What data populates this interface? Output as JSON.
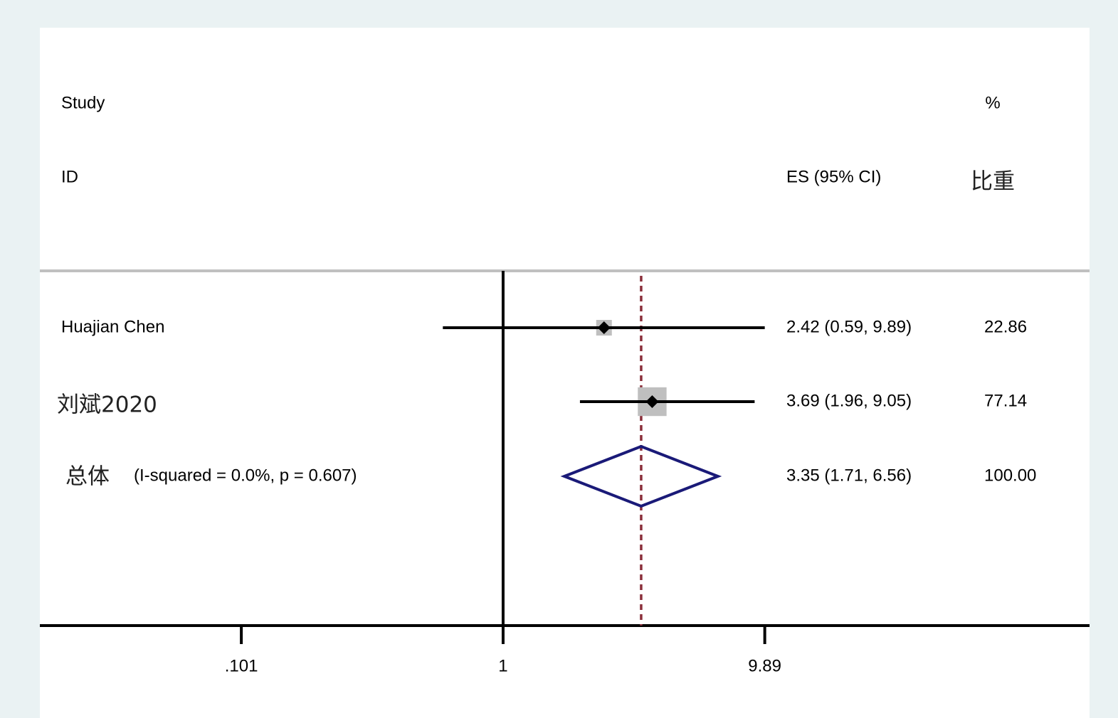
{
  "chart_data": {
    "type": "forest",
    "headers": {
      "study": "Study",
      "id": "ID",
      "es": "ES (95% CI)",
      "pct": "%",
      "weight": "比重"
    },
    "studies": [
      {
        "name": "Huajian Chen",
        "es": 2.42,
        "lower": 0.59,
        "upper": 9.89,
        "es_label": "2.42 (0.59, 9.89)",
        "weight": 22.86,
        "weight_label": "22.86"
      },
      {
        "name": "刘斌2020",
        "es": 3.69,
        "lower": 1.96,
        "upper": 9.05,
        "es_label": "3.69 (1.96, 9.05)",
        "weight": 77.14,
        "weight_label": "77.14"
      }
    ],
    "overall": {
      "name": "总体",
      "note": "(I-squared = 0.0%, p = 0.607)",
      "es": 3.35,
      "lower": 1.71,
      "upper": 6.56,
      "es_label": "3.35 (1.71, 6.56)",
      "weight": 100,
      "weight_label": "100.00"
    },
    "log_scale": true,
    "null_line": 1,
    "xlim": [
      0.0173,
      170
    ],
    "xticks": [
      {
        "value": 0.101,
        "label": ".101"
      },
      1,
      9.89
    ],
    "box_color": "#bfbfbf",
    "diamond_color": "#1a1a78",
    "overall_line_color": "#8b2f3a"
  }
}
